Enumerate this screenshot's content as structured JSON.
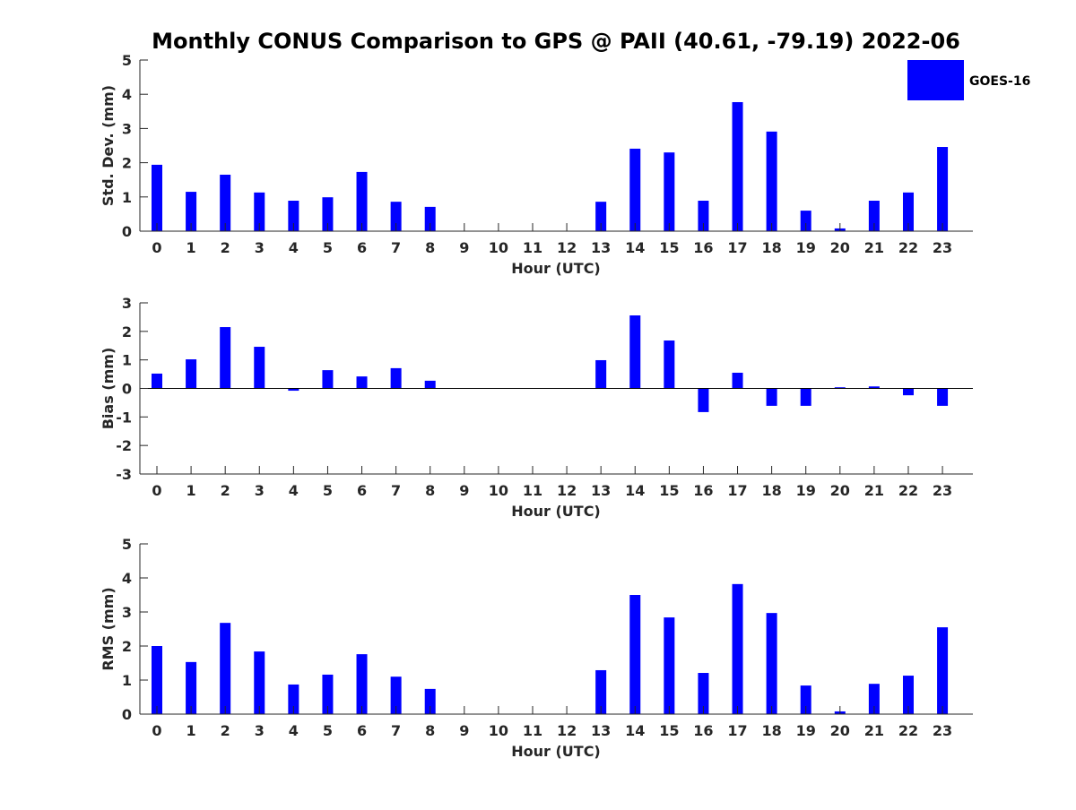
{
  "title": "Monthly CONUS Comparison to GPS @ PAII (40.61, -79.19) 2022-06",
  "legend": {
    "label": "GOES-16",
    "color": "#0000ff"
  },
  "chart_data": [
    {
      "type": "bar",
      "title": "Monthly CONUS Comparison to GPS @ PAII (40.61, -79.19) 2022-06",
      "xlabel": "Hour (UTC)",
      "ylabel": "Std. Dev. (mm)",
      "ylim": [
        0,
        5
      ],
      "yticks": [
        "0",
        "1",
        "2",
        "3",
        "4",
        "5"
      ],
      "categories": [
        "0",
        "1",
        "2",
        "3",
        "4",
        "5",
        "6",
        "7",
        "8",
        "9",
        "10",
        "11",
        "12",
        "13",
        "14",
        "15",
        "16",
        "17",
        "18",
        "19",
        "20",
        "21",
        "22",
        "23"
      ],
      "series": [
        {
          "name": "GOES-16",
          "values": [
            1.94,
            1.15,
            1.65,
            1.13,
            0.89,
            0.99,
            1.73,
            0.86,
            0.71,
            0,
            0,
            0,
            0,
            0.86,
            2.41,
            2.3,
            0.89,
            3.77,
            2.91,
            0.6,
            0.08,
            0.89,
            1.13,
            2.46
          ]
        }
      ],
      "legend": "top-right"
    },
    {
      "type": "bar",
      "xlabel": "Hour (UTC)",
      "ylabel": "Bias (mm)",
      "ylim": [
        -3,
        3
      ],
      "yticks": [
        "-3",
        "-2",
        "-1",
        "0",
        "1",
        "2",
        "3"
      ],
      "categories": [
        "0",
        "1",
        "2",
        "3",
        "4",
        "5",
        "6",
        "7",
        "8",
        "9",
        "10",
        "11",
        "12",
        "13",
        "14",
        "15",
        "16",
        "17",
        "18",
        "19",
        "20",
        "21",
        "22",
        "23"
      ],
      "series": [
        {
          "name": "GOES-16",
          "values": [
            0.52,
            1.02,
            2.15,
            1.46,
            -0.08,
            0.64,
            0.42,
            0.71,
            0.27,
            0,
            0,
            0,
            0,
            0.99,
            2.56,
            1.68,
            -0.83,
            0.55,
            -0.61,
            -0.61,
            0.04,
            0.07,
            -0.24,
            -0.61
          ]
        }
      ]
    },
    {
      "type": "bar",
      "xlabel": "Hour (UTC)",
      "ylabel": "RMS (mm)",
      "ylim": [
        0,
        5
      ],
      "yticks": [
        "0",
        "1",
        "2",
        "3",
        "4",
        "5"
      ],
      "categories": [
        "0",
        "1",
        "2",
        "3",
        "4",
        "5",
        "6",
        "7",
        "8",
        "9",
        "10",
        "11",
        "12",
        "13",
        "14",
        "15",
        "16",
        "17",
        "18",
        "19",
        "20",
        "21",
        "22",
        "23"
      ],
      "series": [
        {
          "name": "GOES-16",
          "values": [
            2.0,
            1.53,
            2.68,
            1.84,
            0.87,
            1.16,
            1.76,
            1.1,
            0.74,
            0,
            0,
            0,
            0,
            1.29,
            3.5,
            2.84,
            1.21,
            3.82,
            2.97,
            0.84,
            0.08,
            0.89,
            1.13,
            2.55
          ]
        }
      ]
    }
  ]
}
